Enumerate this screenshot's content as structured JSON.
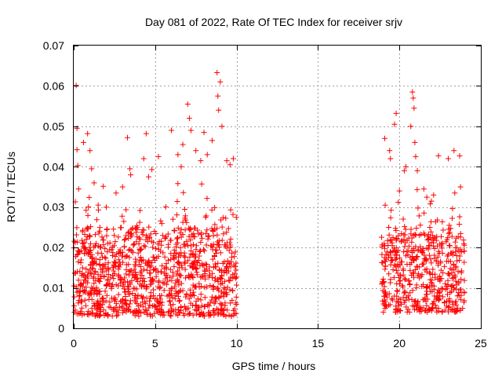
{
  "chart_data": {
    "type": "scatter",
    "title": "Day 081 of 2022, Rate Of TEC Index for receiver srjv",
    "xlabel": "GPS time / hours",
    "ylabel": "ROTI / TECUs",
    "xlim": [
      0,
      25
    ],
    "ylim": [
      0,
      0.07
    ],
    "xticks": [
      0,
      5,
      10,
      15,
      20,
      25
    ],
    "xtick_labels": [
      "0",
      "5",
      "10",
      "15",
      "20",
      "25"
    ],
    "yticks": [
      0,
      0.01,
      0.02,
      0.03,
      0.04,
      0.05,
      0.06,
      0.07
    ],
    "ytick_labels": [
      "0",
      "0.01",
      "0.02",
      "0.03",
      "0.04",
      "0.05",
      "0.06",
      "0.07"
    ],
    "grid": true,
    "marker": "+",
    "color": "#ff0000",
    "series": [
      {
        "name": "ROTI",
        "points": [
          [
            0.15,
            0.0601
          ],
          [
            0.2,
            0.0495
          ],
          [
            0.2,
            0.0442
          ],
          [
            0.25,
            0.0403
          ],
          [
            0.3,
            0.0345
          ],
          [
            0.6,
            0.046
          ],
          [
            0.85,
            0.0482
          ],
          [
            1.0,
            0.044
          ],
          [
            1.1,
            0.0395
          ],
          [
            1.25,
            0.036
          ],
          [
            1.5,
            0.0305
          ],
          [
            2.0,
            0.03
          ],
          [
            2.6,
            0.0335
          ],
          [
            3.0,
            0.035
          ],
          [
            3.3,
            0.0472
          ],
          [
            3.45,
            0.0395
          ],
          [
            3.5,
            0.038
          ],
          [
            4.3,
            0.042
          ],
          [
            4.45,
            0.0482
          ],
          [
            4.6,
            0.0375
          ],
          [
            4.8,
            0.0393
          ],
          [
            5.2,
            0.0425
          ],
          [
            6.0,
            0.049
          ],
          [
            6.4,
            0.043
          ],
          [
            6.6,
            0.04
          ],
          [
            6.7,
            0.0455
          ],
          [
            7.0,
            0.0555
          ],
          [
            7.1,
            0.052
          ],
          [
            7.2,
            0.049
          ],
          [
            7.5,
            0.044
          ],
          [
            7.8,
            0.0415
          ],
          [
            8.0,
            0.0485
          ],
          [
            8.2,
            0.043
          ],
          [
            8.5,
            0.0465
          ],
          [
            8.8,
            0.0633
          ],
          [
            8.85,
            0.0575
          ],
          [
            8.9,
            0.054
          ],
          [
            9.0,
            0.061
          ],
          [
            9.1,
            0.05
          ],
          [
            9.4,
            0.0415
          ],
          [
            9.6,
            0.0405
          ],
          [
            9.8,
            0.042
          ],
          [
            4.0,
            0.003
          ],
          [
            5.5,
            0.004
          ],
          [
            0.5,
            0.005
          ],
          [
            19.1,
            0.047
          ],
          [
            19.4,
            0.044
          ],
          [
            19.45,
            0.042
          ],
          [
            19.7,
            0.0505
          ],
          [
            19.8,
            0.0532
          ],
          [
            20.0,
            0.034
          ],
          [
            20.3,
            0.039
          ],
          [
            20.4,
            0.04
          ],
          [
            20.7,
            0.05
          ],
          [
            20.8,
            0.0585
          ],
          [
            20.85,
            0.057
          ],
          [
            20.9,
            0.0545
          ],
          [
            20.95,
            0.046
          ],
          [
            21.0,
            0.0425
          ],
          [
            21.1,
            0.039
          ],
          [
            21.5,
            0.0345
          ],
          [
            22.1,
            0.033
          ],
          [
            22.4,
            0.0427
          ],
          [
            23.0,
            0.042
          ],
          [
            23.35,
            0.044
          ],
          [
            23.4,
            0.0335
          ],
          [
            23.7,
            0.0427
          ],
          [
            23.75,
            0.035
          ],
          [
            21.7,
            0.004
          ],
          [
            22.8,
            0.0045
          ]
        ],
        "segments": [
          {
            "t0": 0.0,
            "t1": 10.0,
            "base": 0.015,
            "spread": 0.01,
            "min": 0.003,
            "count": 1100
          },
          {
            "t0": 18.9,
            "t1": 24.0,
            "base": 0.014,
            "spread": 0.009,
            "min": 0.004,
            "count": 520
          }
        ]
      }
    ]
  }
}
